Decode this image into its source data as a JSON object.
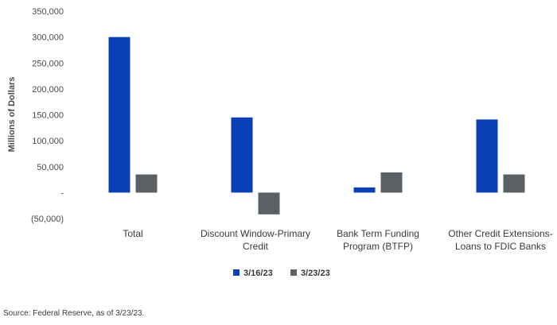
{
  "chart_data": {
    "type": "bar",
    "categories": [
      [
        "Total"
      ],
      [
        "Discount Window-Primary",
        "Credit"
      ],
      [
        "Bank Term Funding",
        "Program (BTFP)"
      ],
      [
        "Other Credit Extensions-",
        "Loans to FDIC Banks"
      ]
    ],
    "series": [
      {
        "name": "3/16/23",
        "color": "#0a3fb6",
        "values": [
          300000,
          145000,
          10000,
          141000
        ]
      },
      {
        "name": "3/23/23",
        "color": "#5a6064",
        "values": [
          35000,
          -42000,
          39000,
          35000
        ]
      }
    ],
    "ylabel": "Millions of Dollars",
    "ylim": [
      -50000,
      350000
    ],
    "yticks": [
      350000,
      300000,
      250000,
      200000,
      150000,
      100000,
      50000,
      0,
      -50000
    ],
    "ytick_labels": [
      "350,000",
      "300,000",
      "250,000",
      "200,000",
      "150,000",
      "100,000",
      "50,000",
      "-",
      "(50,000)"
    ],
    "grid": false,
    "legend_position": "bottom-center"
  },
  "source": "Source: Federal Reserve, as of 3/23/23."
}
